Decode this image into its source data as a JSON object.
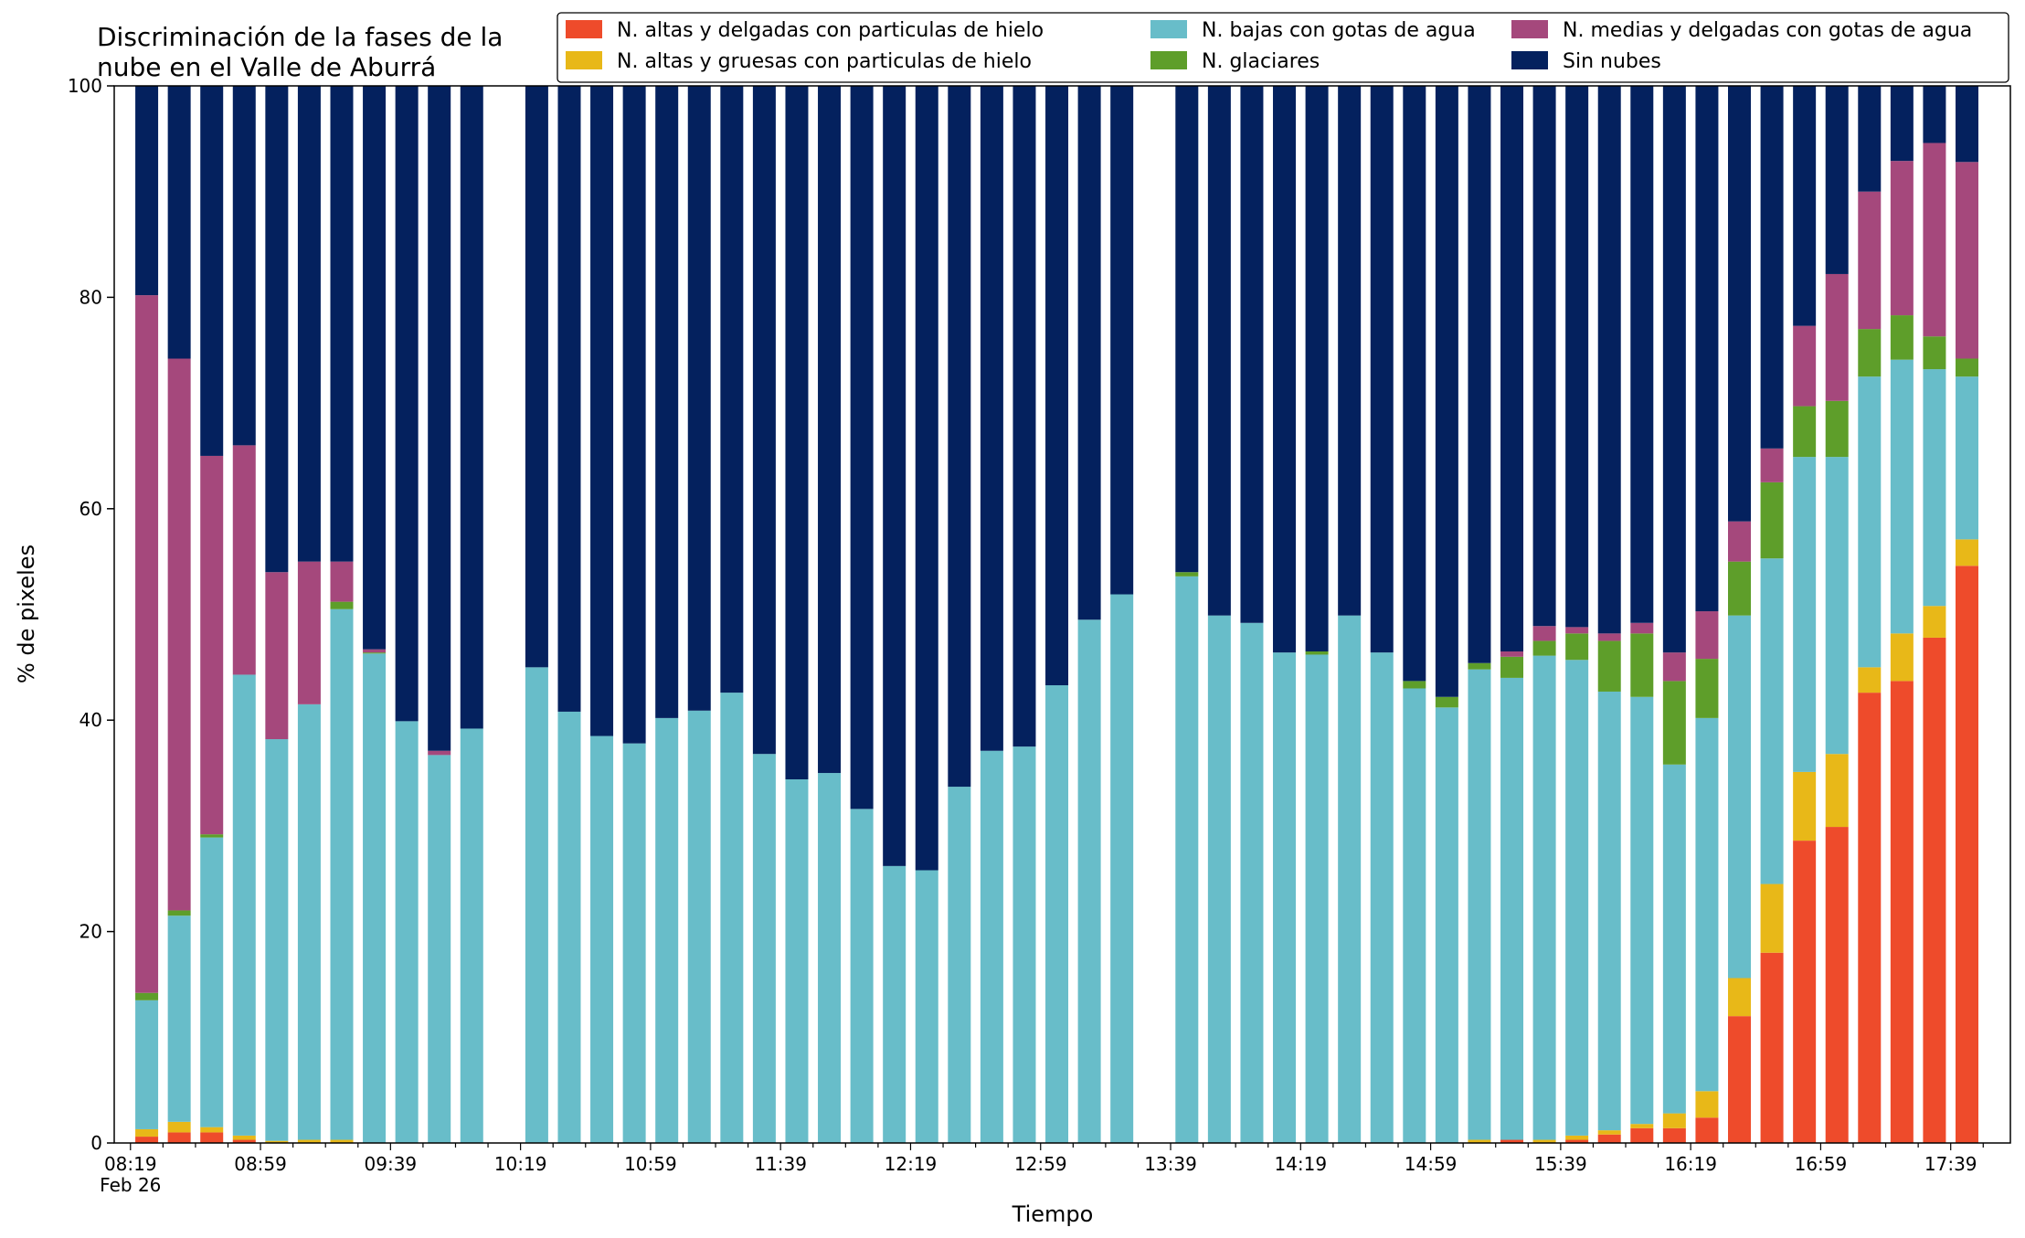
{
  "chart_data": {
    "type": "bar",
    "stacked": true,
    "title_lines": [
      "Discriminación de la fases de la",
      "nube en el Valle de Aburrá"
    ],
    "xlabel": "Tiempo",
    "ylabel": "% de pixeles",
    "ylim": [
      0,
      100
    ],
    "yticks": [
      0,
      20,
      40,
      60,
      80,
      100
    ],
    "xticks": [
      {
        "time": "08:19",
        "sub": "Feb 26"
      },
      {
        "time": "08:59",
        "sub": ""
      },
      {
        "time": "09:39",
        "sub": ""
      },
      {
        "time": "10:19",
        "sub": ""
      },
      {
        "time": "10:59",
        "sub": ""
      },
      {
        "time": "11:39",
        "sub": ""
      },
      {
        "time": "12:19",
        "sub": ""
      },
      {
        "time": "12:59",
        "sub": ""
      },
      {
        "time": "13:39",
        "sub": ""
      },
      {
        "time": "14:19",
        "sub": ""
      },
      {
        "time": "14:59",
        "sub": ""
      },
      {
        "time": "15:39",
        "sub": ""
      },
      {
        "time": "16:19",
        "sub": ""
      },
      {
        "time": "16:59",
        "sub": ""
      },
      {
        "time": "17:39",
        "sub": ""
      }
    ],
    "legend_position": "top-right",
    "grid": false,
    "series": [
      {
        "name": "N. altas y delgadas con particulas de hielo",
        "color": "#ee4b2b"
      },
      {
        "name": "N. altas y gruesas con particulas de hielo",
        "color": "#e8b818"
      },
      {
        "name": "N. bajas con gotas de agua",
        "color": "#68bdc9"
      },
      {
        "name": "N. glaciares",
        "color": "#5e9e2a"
      },
      {
        "name": "N. medias y delgadas con gotas de agua",
        "color": "#a5487c"
      },
      {
        "name": "Sin nubes",
        "color": "#04215e"
      }
    ],
    "bars": [
      {
        "time": "08:24",
        "values": [
          0.6,
          0.7,
          12.2,
          0.7,
          66.0,
          19.8
        ]
      },
      {
        "time": "08:34",
        "values": [
          1.0,
          1.0,
          19.5,
          0.5,
          52.2,
          25.8
        ]
      },
      {
        "time": "08:44",
        "values": [
          1.0,
          0.5,
          27.4,
          0.3,
          35.8,
          35.0
        ]
      },
      {
        "time": "08:54",
        "values": [
          0.3,
          0.4,
          43.6,
          0.0,
          21.7,
          34.0
        ]
      },
      {
        "time": "09:04",
        "values": [
          0.0,
          0.2,
          38.0,
          0.0,
          15.8,
          46.0
        ]
      },
      {
        "time": "09:14",
        "values": [
          0.0,
          0.3,
          41.2,
          0.0,
          13.5,
          45.0
        ]
      },
      {
        "time": "09:24",
        "values": [
          0.0,
          0.3,
          50.2,
          0.7,
          3.8,
          45.0
        ]
      },
      {
        "time": "09:34",
        "values": [
          0.0,
          0.0,
          46.3,
          0.1,
          0.3,
          53.3
        ]
      },
      {
        "time": "09:44",
        "values": [
          0.0,
          0.0,
          39.9,
          0.0,
          0.0,
          60.1
        ]
      },
      {
        "time": "09:54",
        "values": [
          0.0,
          0.0,
          36.7,
          0.0,
          0.4,
          62.9
        ]
      },
      {
        "time": "10:04",
        "values": [
          0.0,
          0.0,
          39.2,
          0.0,
          0.0,
          60.8
        ]
      },
      {
        "time": "10:24",
        "values": [
          0.0,
          0.0,
          45.0,
          0.0,
          0.0,
          55.0
        ]
      },
      {
        "time": "10:34",
        "values": [
          0.0,
          0.0,
          40.8,
          0.0,
          0.0,
          59.2
        ]
      },
      {
        "time": "10:44",
        "values": [
          0.0,
          0.0,
          38.5,
          0.0,
          0.0,
          61.5
        ]
      },
      {
        "time": "10:54",
        "values": [
          0.0,
          0.0,
          37.8,
          0.0,
          0.0,
          62.2
        ]
      },
      {
        "time": "11:04",
        "values": [
          0.0,
          0.0,
          40.2,
          0.0,
          0.0,
          59.8
        ]
      },
      {
        "time": "11:14",
        "values": [
          0.0,
          0.0,
          40.9,
          0.0,
          0.0,
          59.1
        ]
      },
      {
        "time": "11:24",
        "values": [
          0.0,
          0.0,
          42.6,
          0.0,
          0.0,
          57.4
        ]
      },
      {
        "time": "11:34",
        "values": [
          0.0,
          0.0,
          36.8,
          0.0,
          0.0,
          63.2
        ]
      },
      {
        "time": "11:44",
        "values": [
          0.0,
          0.0,
          34.4,
          0.0,
          0.0,
          65.6
        ]
      },
      {
        "time": "11:54",
        "values": [
          0.0,
          0.0,
          35.0,
          0.0,
          0.0,
          65.0
        ]
      },
      {
        "time": "12:04",
        "values": [
          0.0,
          0.0,
          31.6,
          0.0,
          0.0,
          68.4
        ]
      },
      {
        "time": "12:14",
        "values": [
          0.0,
          0.0,
          26.2,
          0.0,
          0.0,
          73.8
        ]
      },
      {
        "time": "12:24",
        "values": [
          0.0,
          0.0,
          25.8,
          0.0,
          0.0,
          74.2
        ]
      },
      {
        "time": "12:34",
        "values": [
          0.0,
          0.0,
          33.7,
          0.0,
          0.0,
          66.3
        ]
      },
      {
        "time": "12:44",
        "values": [
          0.0,
          0.0,
          37.1,
          0.0,
          0.0,
          62.9
        ]
      },
      {
        "time": "12:54",
        "values": [
          0.0,
          0.0,
          37.5,
          0.0,
          0.0,
          62.5
        ]
      },
      {
        "time": "13:04",
        "values": [
          0.0,
          0.0,
          43.3,
          0.0,
          0.0,
          56.7
        ]
      },
      {
        "time": "13:14",
        "values": [
          0.0,
          0.0,
          49.5,
          0.0,
          0.0,
          50.5
        ]
      },
      {
        "time": "13:24",
        "values": [
          0.0,
          0.0,
          51.9,
          0.0,
          0.0,
          48.1
        ]
      },
      {
        "time": "13:44",
        "values": [
          0.0,
          0.0,
          53.6,
          0.4,
          0.0,
          46.0
        ]
      },
      {
        "time": "13:54",
        "values": [
          0.0,
          0.0,
          49.9,
          0.0,
          0.0,
          50.1
        ]
      },
      {
        "time": "14:04",
        "values": [
          0.0,
          0.0,
          49.2,
          0.0,
          0.0,
          50.8
        ]
      },
      {
        "time": "14:14",
        "values": [
          0.0,
          0.0,
          46.4,
          0.0,
          0.0,
          53.6
        ]
      },
      {
        "time": "14:24",
        "values": [
          0.0,
          0.0,
          46.2,
          0.3,
          0.0,
          53.5
        ]
      },
      {
        "time": "14:34",
        "values": [
          0.0,
          0.0,
          49.9,
          0.0,
          0.0,
          50.1
        ]
      },
      {
        "time": "14:44",
        "values": [
          0.0,
          0.0,
          46.4,
          0.0,
          0.0,
          53.6
        ]
      },
      {
        "time": "14:54",
        "values": [
          0.0,
          0.0,
          43.0,
          0.7,
          0.0,
          56.3
        ]
      },
      {
        "time": "15:04",
        "values": [
          0.0,
          0.0,
          41.2,
          1.0,
          0.0,
          57.8
        ]
      },
      {
        "time": "15:14",
        "values": [
          0.0,
          0.3,
          44.5,
          0.6,
          0.0,
          54.6
        ]
      },
      {
        "time": "15:24",
        "values": [
          0.3,
          0.0,
          43.7,
          2.0,
          0.5,
          53.5
        ]
      },
      {
        "time": "15:34",
        "values": [
          0.0,
          0.3,
          45.8,
          1.4,
          1.4,
          51.1
        ]
      },
      {
        "time": "15:44",
        "values": [
          0.3,
          0.4,
          45.0,
          2.5,
          0.6,
          51.2
        ]
      },
      {
        "time": "15:54",
        "values": [
          0.8,
          0.4,
          41.5,
          4.8,
          0.7,
          51.8
        ]
      },
      {
        "time": "16:04",
        "values": [
          1.4,
          0.4,
          40.4,
          6.0,
          1.0,
          50.8
        ]
      },
      {
        "time": "16:14",
        "values": [
          1.4,
          1.4,
          33.0,
          7.9,
          2.7,
          53.6
        ]
      },
      {
        "time": "16:24",
        "values": [
          2.4,
          2.5,
          35.3,
          5.6,
          4.5,
          49.7
        ]
      },
      {
        "time": "16:34",
        "values": [
          12.0,
          3.6,
          34.3,
          5.1,
          3.8,
          41.2
        ]
      },
      {
        "time": "16:44",
        "values": [
          18.0,
          6.5,
          30.8,
          7.2,
          3.2,
          34.3
        ]
      },
      {
        "time": "16:54",
        "values": [
          28.6,
          6.5,
          29.8,
          4.8,
          7.6,
          22.7
        ]
      },
      {
        "time": "17:04",
        "values": [
          29.9,
          6.9,
          28.1,
          5.3,
          12.0,
          17.8
        ]
      },
      {
        "time": "17:14",
        "values": [
          42.6,
          2.4,
          27.5,
          4.5,
          13.0,
          10.0
        ]
      },
      {
        "time": "17:24",
        "values": [
          43.7,
          4.5,
          25.9,
          4.2,
          14.6,
          7.1
        ]
      },
      {
        "time": "17:34",
        "values": [
          47.8,
          3.0,
          22.4,
          3.1,
          18.3,
          5.4
        ]
      },
      {
        "time": "17:44",
        "values": [
          54.6,
          2.5,
          15.4,
          1.7,
          18.6,
          7.2
        ]
      }
    ]
  }
}
